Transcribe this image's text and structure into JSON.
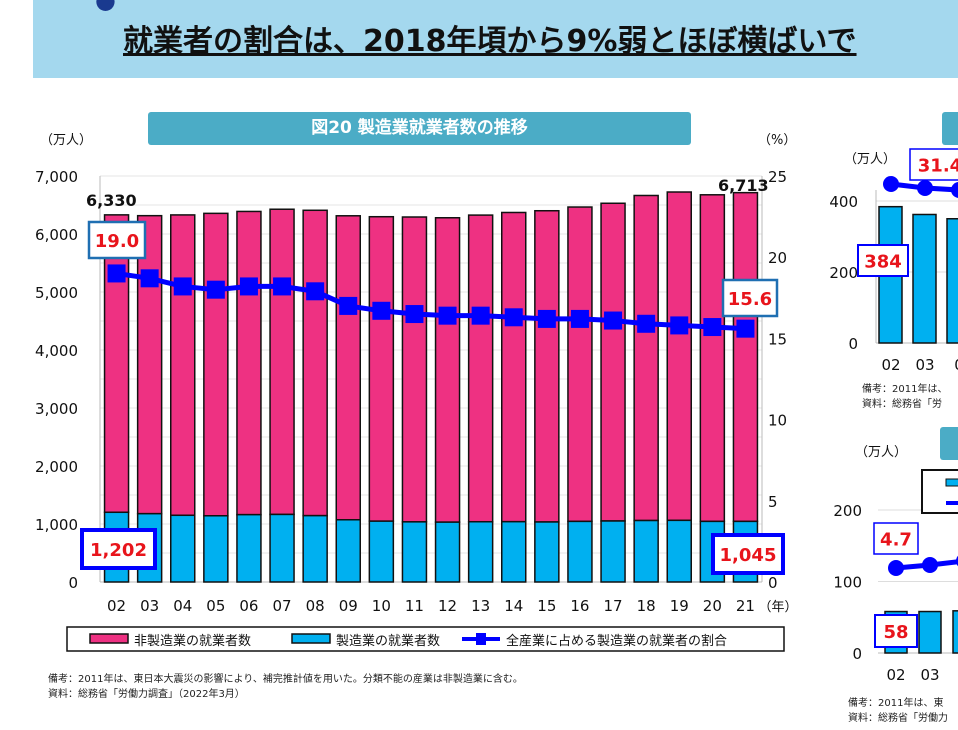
{
  "header": {
    "line2": "就業者の割合は、2018年頃から9%弱とほぼ横ばいで"
  },
  "main_chart": {
    "title": "図20  製造業就業者数の推移",
    "left_unit": "（万人）",
    "right_unit": "（%）",
    "x_unit": "（年）",
    "notes": [
      "備考：2011年は、東日本大震災の影響により、補完推計値を用いた。分類不能の産業は非製造業に含む。",
      "資料：総務省「労働力調査」（2022年3月）"
    ]
  },
  "chart_data": [
    {
      "type": "bar",
      "stacked": true,
      "title": "図20  製造業就業者数の推移",
      "categories": [
        "02",
        "03",
        "04",
        "05",
        "06",
        "07",
        "08",
        "09",
        "10",
        "11",
        "12",
        "13",
        "14",
        "15",
        "16",
        "17",
        "18",
        "19",
        "20",
        "21"
      ],
      "ylabel": "（万人）",
      "y2label": "（%）",
      "xlabel": "（年）",
      "ylim": [
        0,
        7000
      ],
      "yticks": [
        "0",
        "1,000",
        "2,000",
        "3,000",
        "4,000",
        "5,000",
        "6,000",
        "7,000"
      ],
      "y2lim": [
        0,
        25
      ],
      "y2ticks": [
        "0",
        "5",
        "10",
        "15",
        "20",
        "25"
      ],
      "grid": true,
      "legend_position": "bottom",
      "colors": {
        "non_manufacturing": "#ee3182",
        "manufacturing": "#00b0f0",
        "ratio": "#0000ff"
      },
      "series": [
        {
          "name": "製造業の就業者数",
          "values": [
            1202,
            1178,
            1150,
            1142,
            1161,
            1165,
            1144,
            1073,
            1049,
            1037,
            1032,
            1039,
            1040,
            1035,
            1045,
            1052,
            1060,
            1063,
            1045,
            1045
          ]
        },
        {
          "name": "非製造業の就業者数",
          "values": [
            5128,
            5138,
            5179,
            5214,
            5228,
            5262,
            5265,
            5241,
            5249,
            5256,
            5248,
            5287,
            5331,
            5366,
            5420,
            5478,
            5604,
            5661,
            5631,
            5668
          ]
        },
        {
          "name": "全産業に占める製造業の就業者の割合",
          "axis": "right",
          "type": "line",
          "values": [
            19.0,
            18.7,
            18.2,
            18.0,
            18.2,
            18.2,
            17.9,
            17.0,
            16.7,
            16.5,
            16.4,
            16.4,
            16.3,
            16.2,
            16.2,
            16.1,
            15.9,
            15.8,
            15.7,
            15.6
          ]
        }
      ],
      "totals": [
        6330,
        6316,
        6329,
        6356,
        6389,
        6427,
        6409,
        6314,
        6298,
        6293,
        6280,
        6326,
        6371,
        6401,
        6465,
        6530,
        6664,
        6724,
        6676,
        6713
      ],
      "annotations": {
        "total_first": "6,330",
        "total_last": "6,713",
        "ratio_first": "19.0",
        "ratio_last": "15.6",
        "mfg_first": "1,202",
        "mfg_last": "1,045"
      }
    },
    {
      "type": "bar",
      "ylabel": "（万人）",
      "ylim": [
        0,
        400
      ],
      "yticks": [
        "0",
        "200",
        "400"
      ],
      "categories": [
        "02",
        "03",
        "0"
      ],
      "series": [
        {
          "values": [
            384,
            362,
            350
          ]
        },
        {
          "type": "line",
          "values": [
            31.4,
            31.0,
            30.8
          ]
        }
      ],
      "annotations": {
        "bar_first": "384",
        "line_first": "31.4"
      },
      "notes": [
        "備考：2011年は、",
        "資料：総務省「労"
      ]
    },
    {
      "type": "bar",
      "ylabel": "（万人）",
      "ylim": [
        0,
        200
      ],
      "yticks": [
        "0",
        "100",
        "200"
      ],
      "categories": [
        "02",
        "03",
        "0"
      ],
      "series": [
        {
          "values": [
            58,
            58,
            59
          ]
        },
        {
          "type": "line",
          "values": [
            4.7,
            4.8,
            5.0
          ]
        }
      ],
      "annotations": {
        "bar_first": "58",
        "line_first": "4.7"
      },
      "notes": [
        "備考：2011年は、東",
        "資料：総務省「労働力"
      ]
    }
  ],
  "legend": [
    {
      "label": "非製造業の就業者数",
      "color": "#ee3182"
    },
    {
      "label": "製造業の就業者数",
      "color": "#00b0f0"
    },
    {
      "label": "全産業に占める製造業の就業者の割合",
      "color": "#0000ff"
    }
  ]
}
